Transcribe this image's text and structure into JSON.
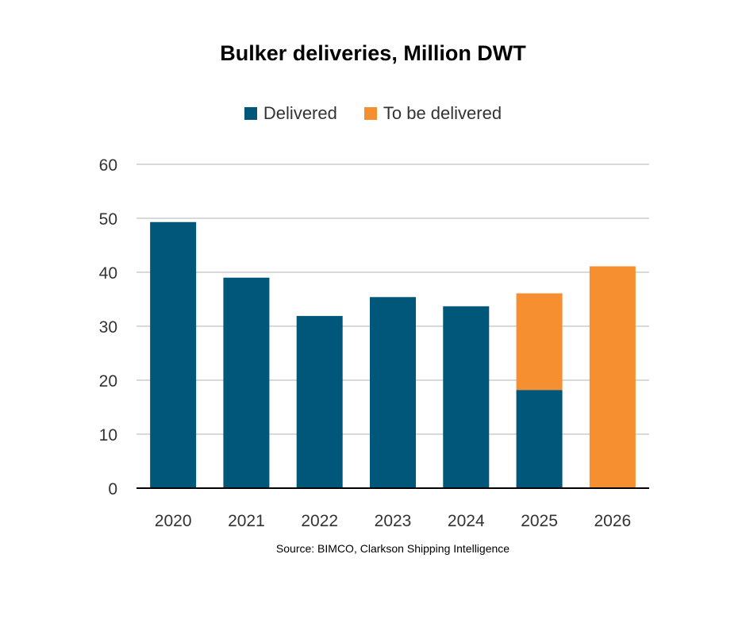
{
  "chart_data": {
    "type": "bar",
    "stacked": true,
    "title": "Bulker deliveries, Million DWT",
    "xlabel": "",
    "ylabel": "",
    "categories": [
      "2020",
      "2021",
      "2022",
      "2023",
      "2024",
      "2025",
      "2026"
    ],
    "series": [
      {
        "name": "Delivered",
        "color": "#01577A",
        "values": [
          49.3,
          39.0,
          31.9,
          35.4,
          33.7,
          18.2,
          0
        ]
      },
      {
        "name": "To be delivered",
        "color": "#F58F2F",
        "values": [
          0,
          0,
          0,
          0,
          0,
          17.9,
          41.1
        ]
      }
    ],
    "ylim": [
      0,
      60
    ],
    "yticks": [
      0,
      10,
      20,
      30,
      40,
      50,
      60
    ],
    "grid": true,
    "legend": "top-center",
    "source": "Source: BIMCO, Clarkson Shipping Intelligence"
  }
}
